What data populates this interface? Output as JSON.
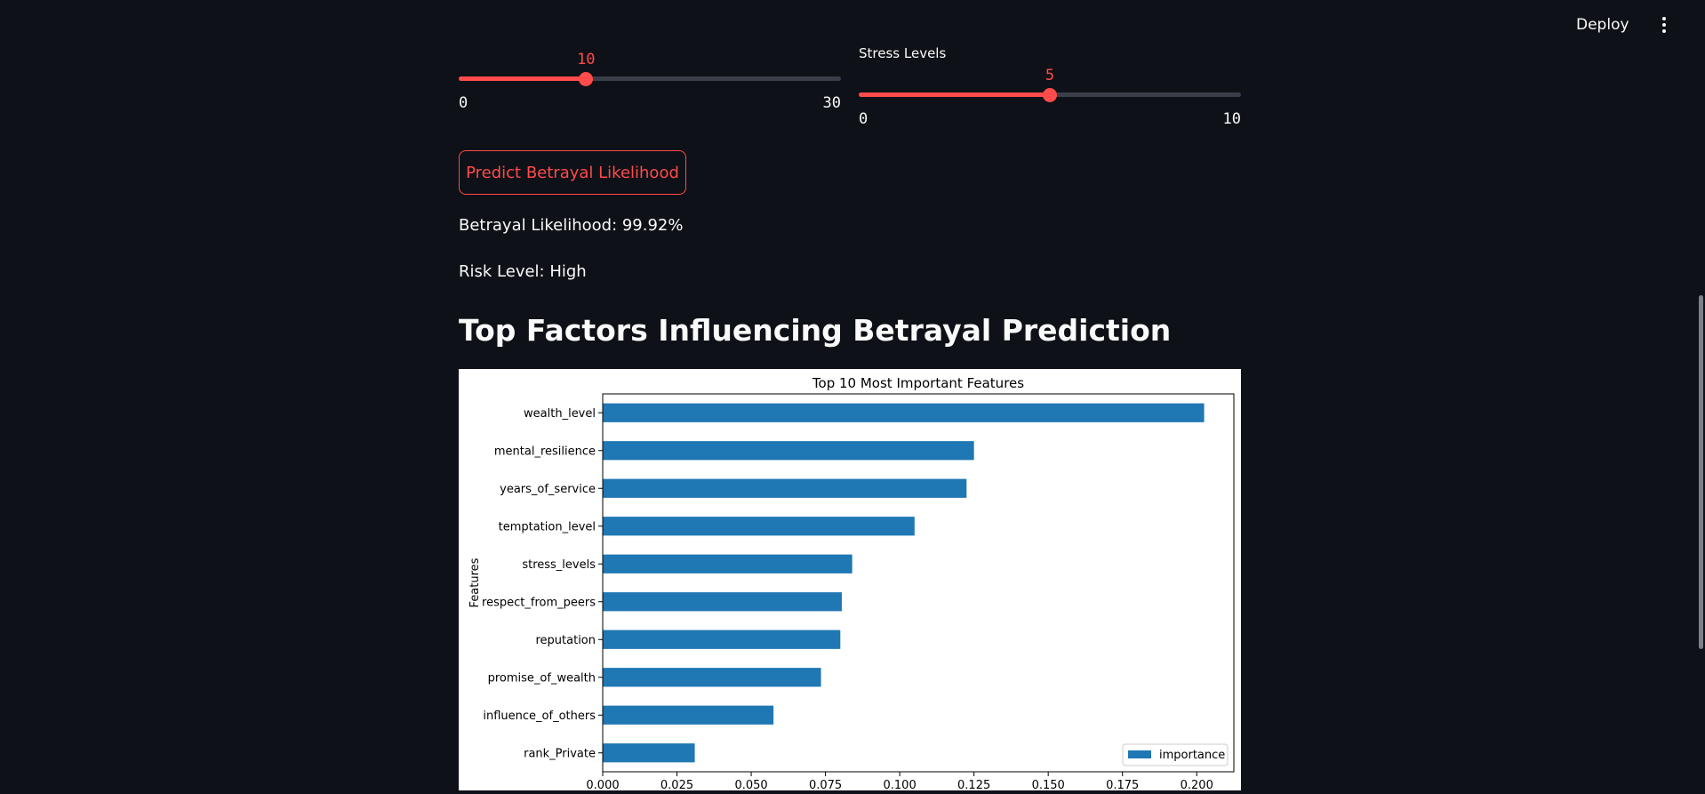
{
  "header": {
    "deploy_label": "Deploy",
    "menu_icon": "more-vertical-icon"
  },
  "sliders": [
    {
      "label": "",
      "min": "0",
      "max": "30",
      "value": "10",
      "fraction": 0.3333
    },
    {
      "label": "Stress Levels",
      "min": "0",
      "max": "10",
      "value": "5",
      "fraction": 0.5
    }
  ],
  "predict_button_label": "Predict Betrayal Likelihood",
  "result": {
    "likelihood_text": "Betrayal Likelihood: 99.92%",
    "risk_text": "Risk Level: High"
  },
  "section_heading": "Top Factors Influencing Betrayal Prediction",
  "colors": {
    "accent": "#ff4b4b",
    "bar": "#1f77b4",
    "background": "#0e1117"
  },
  "chart_data": {
    "type": "bar",
    "orientation": "horizontal",
    "title": "Top 10 Most Important Features",
    "ylabel": "Features",
    "xlabel": "",
    "categories": [
      "wealth_level",
      "mental_resilience",
      "years_of_service",
      "temptation_level",
      "stress_levels",
      "respect_from_peers",
      "reputation",
      "promise_of_wealth",
      "influence_of_others",
      "rank_Private"
    ],
    "series": [
      {
        "name": "importance",
        "values": [
          0.2025,
          0.125,
          0.1225,
          0.105,
          0.084,
          0.0805,
          0.08,
          0.0735,
          0.0575,
          0.031
        ]
      }
    ],
    "xlim": [
      0,
      0.2125
    ],
    "xticks": [
      "0.000",
      "0.025",
      "0.050",
      "0.075",
      "0.100",
      "0.125",
      "0.150",
      "0.175",
      "0.200"
    ],
    "xtick_values": [
      0,
      0.025,
      0.05,
      0.075,
      0.1,
      0.125,
      0.15,
      0.175,
      0.2
    ],
    "legend_position": "lower-right",
    "grid": false
  }
}
